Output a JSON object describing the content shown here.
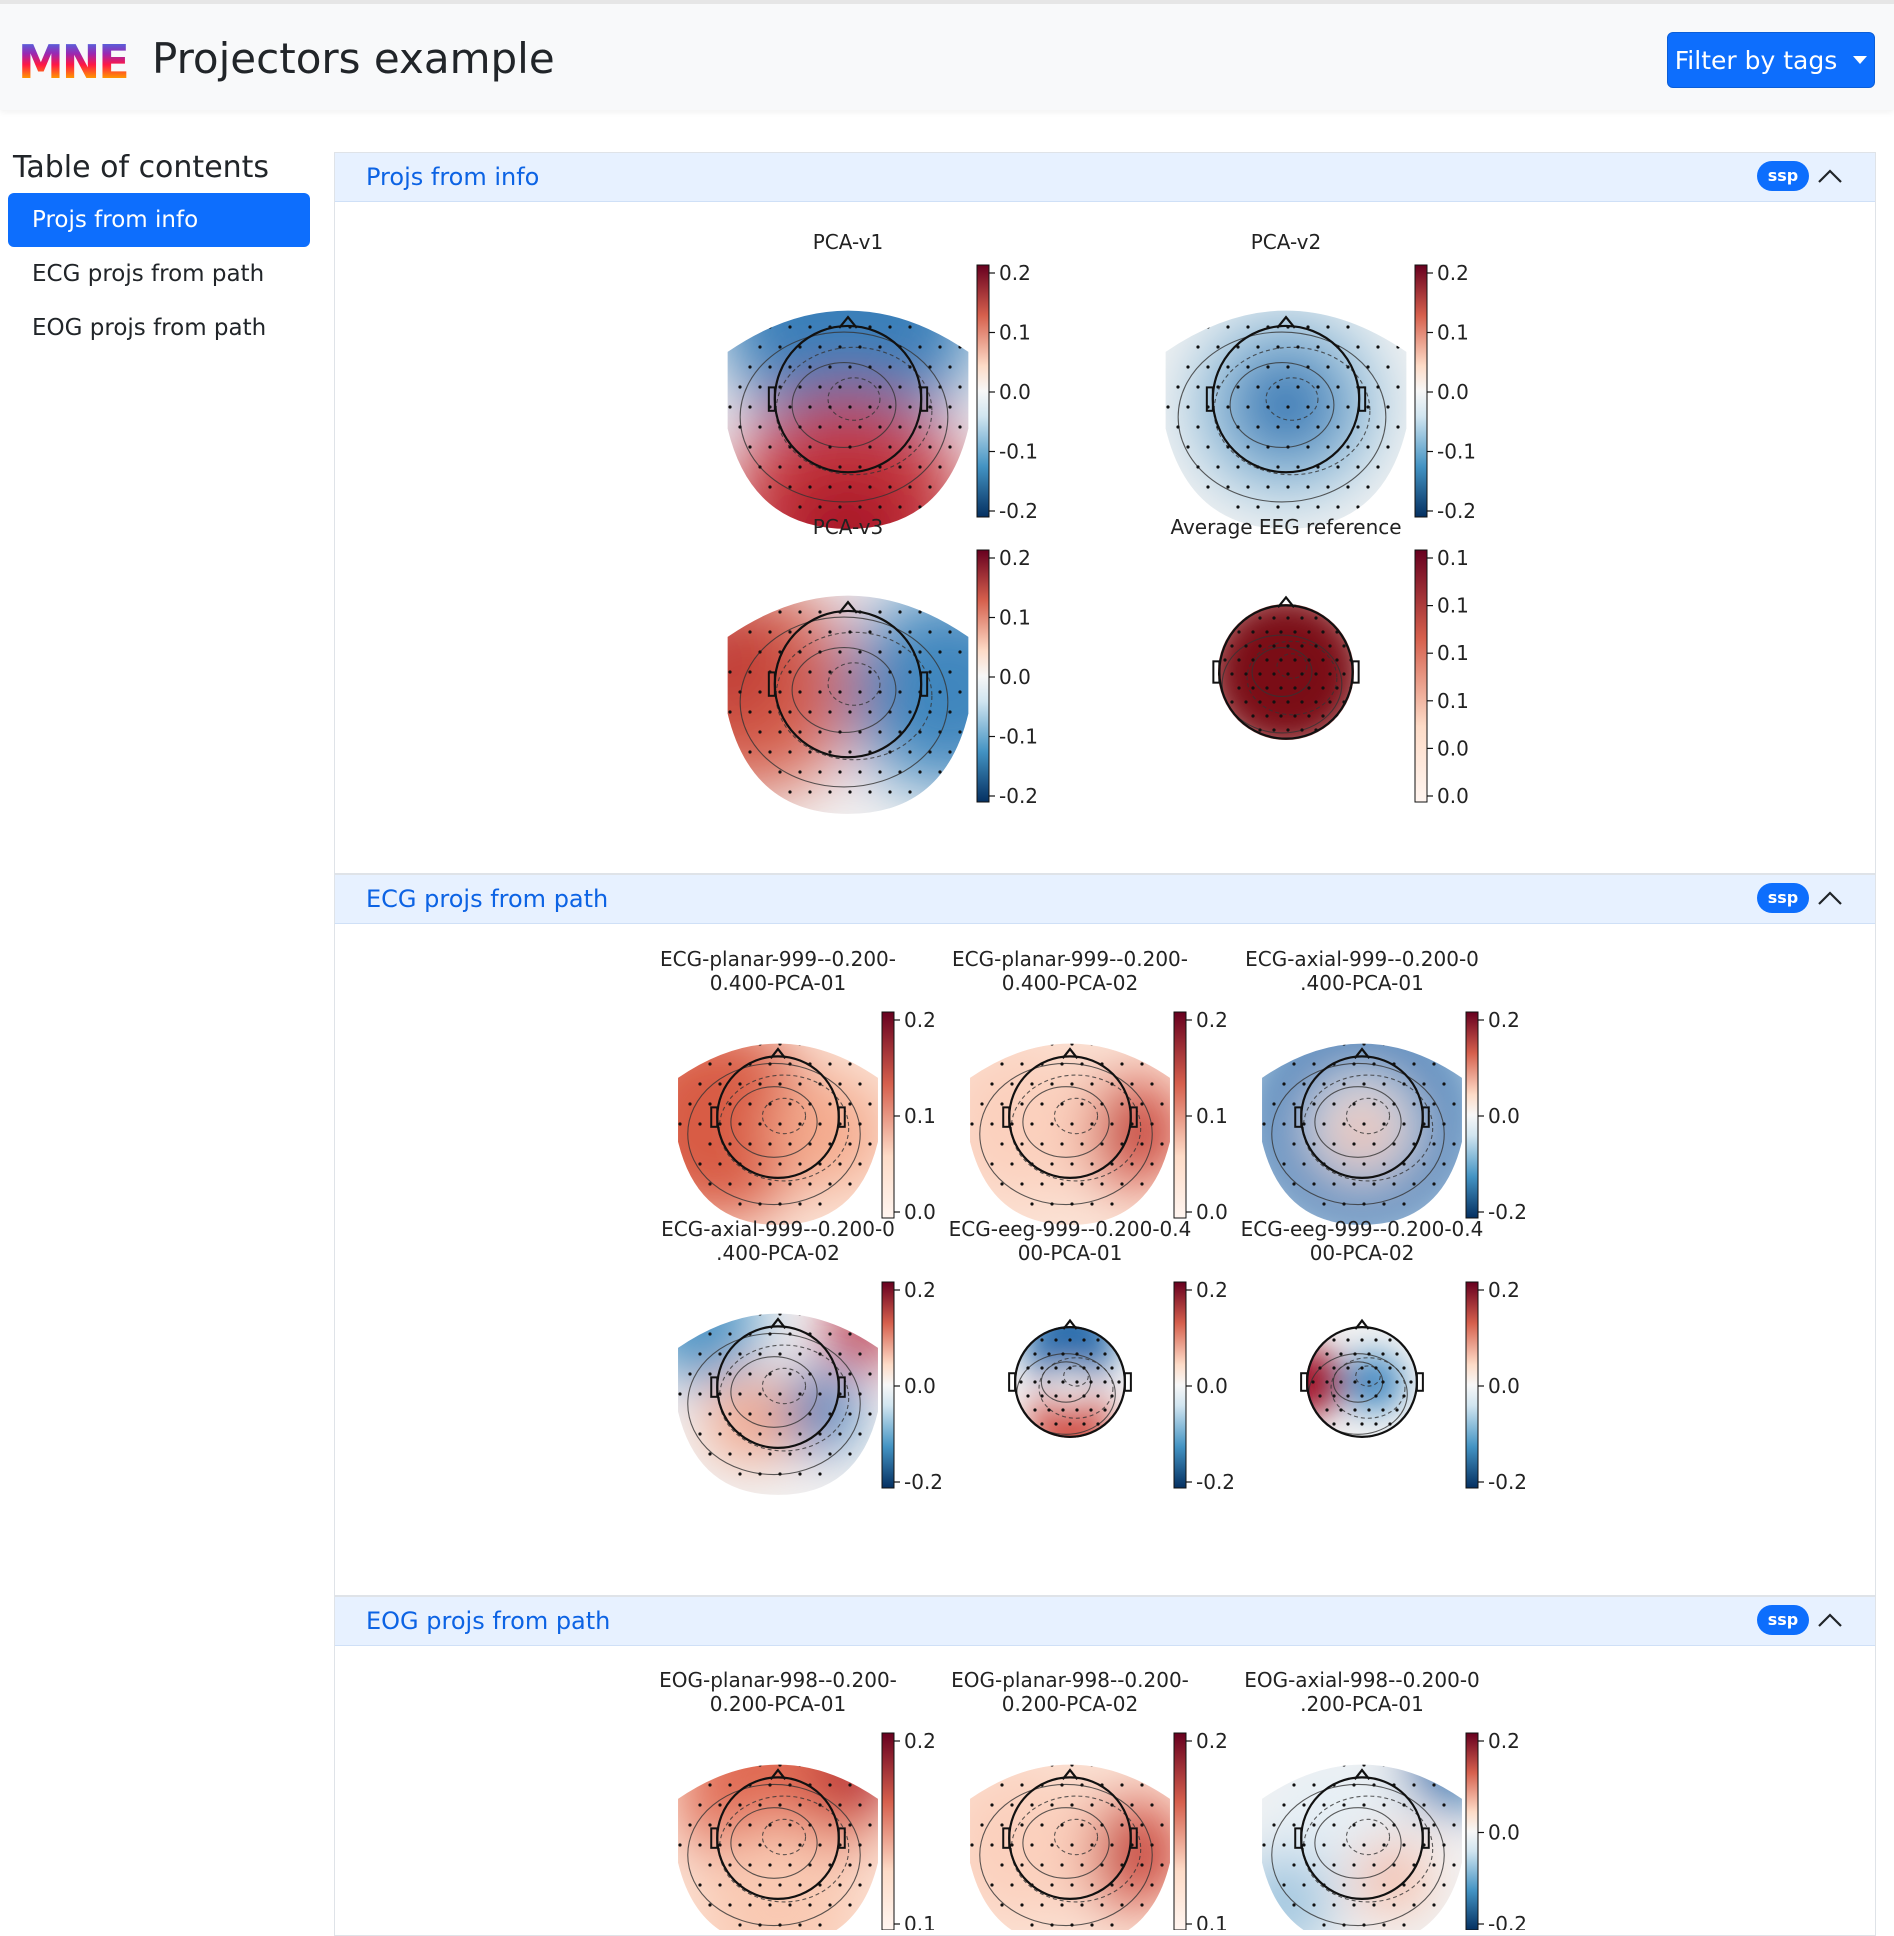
{
  "header": {
    "logo_text": "MNE",
    "title": "Projectors example",
    "filter_button": "Filter by tags"
  },
  "toc": {
    "title": "Table of contents",
    "items": [
      {
        "label": "Projs from info",
        "active": true
      },
      {
        "label": "ECG projs from path",
        "active": false
      },
      {
        "label": "EOG projs from path",
        "active": false
      }
    ]
  },
  "sections": [
    {
      "title": "Projs from info",
      "badge": "ssp",
      "plots": [
        {
          "title": [
            "PCA-v1"
          ],
          "ticks": [
            "0.2",
            "0.1",
            "0.0",
            "-0.1",
            "-0.2"
          ],
          "cmap": "diverging",
          "pattern": "front-back"
        },
        {
          "title": [
            "PCA-v2"
          ],
          "ticks": [
            "0.2",
            "0.1",
            "0.0",
            "-0.1",
            "-0.2"
          ],
          "cmap": "diverging",
          "pattern": "center-blue"
        },
        {
          "title": [
            "PCA-v3"
          ],
          "ticks": [
            "0.2",
            "0.1",
            "0.0",
            "-0.1",
            "-0.2"
          ],
          "cmap": "diverging",
          "pattern": "left-right"
        },
        {
          "title": [
            "Average EEG reference"
          ],
          "ticks": [
            "0.1",
            "0.1",
            "0.1",
            "0.1",
            "0.0",
            "0.0"
          ],
          "cmap": "reds",
          "pattern": "uniform"
        }
      ]
    },
    {
      "title": "ECG projs from path",
      "badge": "ssp",
      "plots": [
        {
          "title": [
            "ECG-planar-999--0.200-",
            "0.400-PCA-01"
          ],
          "ticks": [
            "0.2",
            "0.1",
            "0.0"
          ],
          "cmap": "reds",
          "pattern": "reds-left"
        },
        {
          "title": [
            "ECG-planar-999--0.200-",
            "0.400-PCA-02"
          ],
          "ticks": [
            "0.2",
            "0.1",
            "0.0"
          ],
          "cmap": "reds",
          "pattern": "reds-right"
        },
        {
          "title": [
            "ECG-axial-999--0.200-0",
            ".400-PCA-01"
          ],
          "ticks": [
            "0.2",
            "0.0",
            "-0.2"
          ],
          "cmap": "diverging",
          "pattern": "ring-blue"
        },
        {
          "title": [
            "ECG-axial-999--0.200-0",
            ".400-PCA-02"
          ],
          "ticks": [
            "0.2",
            "0.0",
            "-0.2"
          ],
          "cmap": "diverging",
          "pattern": "mixed"
        },
        {
          "title": [
            "ECG-eeg-999--0.200-0.4",
            "00-PCA-01"
          ],
          "ticks": [
            "0.2",
            "0.0",
            "-0.2"
          ],
          "cmap": "diverging",
          "pattern": "front-blue-small"
        },
        {
          "title": [
            "ECG-eeg-999--0.200-0.4",
            "00-PCA-02"
          ],
          "ticks": [
            "0.2",
            "0.0",
            "-0.2"
          ],
          "cmap": "diverging",
          "pattern": "left-red-small"
        }
      ]
    },
    {
      "title": "EOG projs from path",
      "badge": "ssp",
      "plots": [
        {
          "title": [
            "EOG-planar-998--0.200-",
            "0.200-PCA-01"
          ],
          "ticks": [
            "0.2",
            "0.1"
          ],
          "cmap": "reds",
          "pattern": "reds-top"
        },
        {
          "title": [
            "EOG-planar-998--0.200-",
            "0.200-PCA-02"
          ],
          "ticks": [
            "0.2",
            "0.1"
          ],
          "cmap": "reds",
          "pattern": "reds-right"
        },
        {
          "title": [
            "EOG-axial-998--0.200-0",
            ".200-PCA-01"
          ],
          "ticks": [
            "0.2",
            "0.0",
            "-0.2"
          ],
          "cmap": "diverging",
          "pattern": "mixed-light"
        }
      ]
    }
  ],
  "colors": {
    "primary": "#0d6efd",
    "header_bg": "#e7f1ff",
    "header_text": "#0c63e4",
    "red_dark": "#67001f",
    "red": "#d6604d",
    "white": "#f7f7f7",
    "blue": "#4393c3",
    "blue_dark": "#053061"
  }
}
